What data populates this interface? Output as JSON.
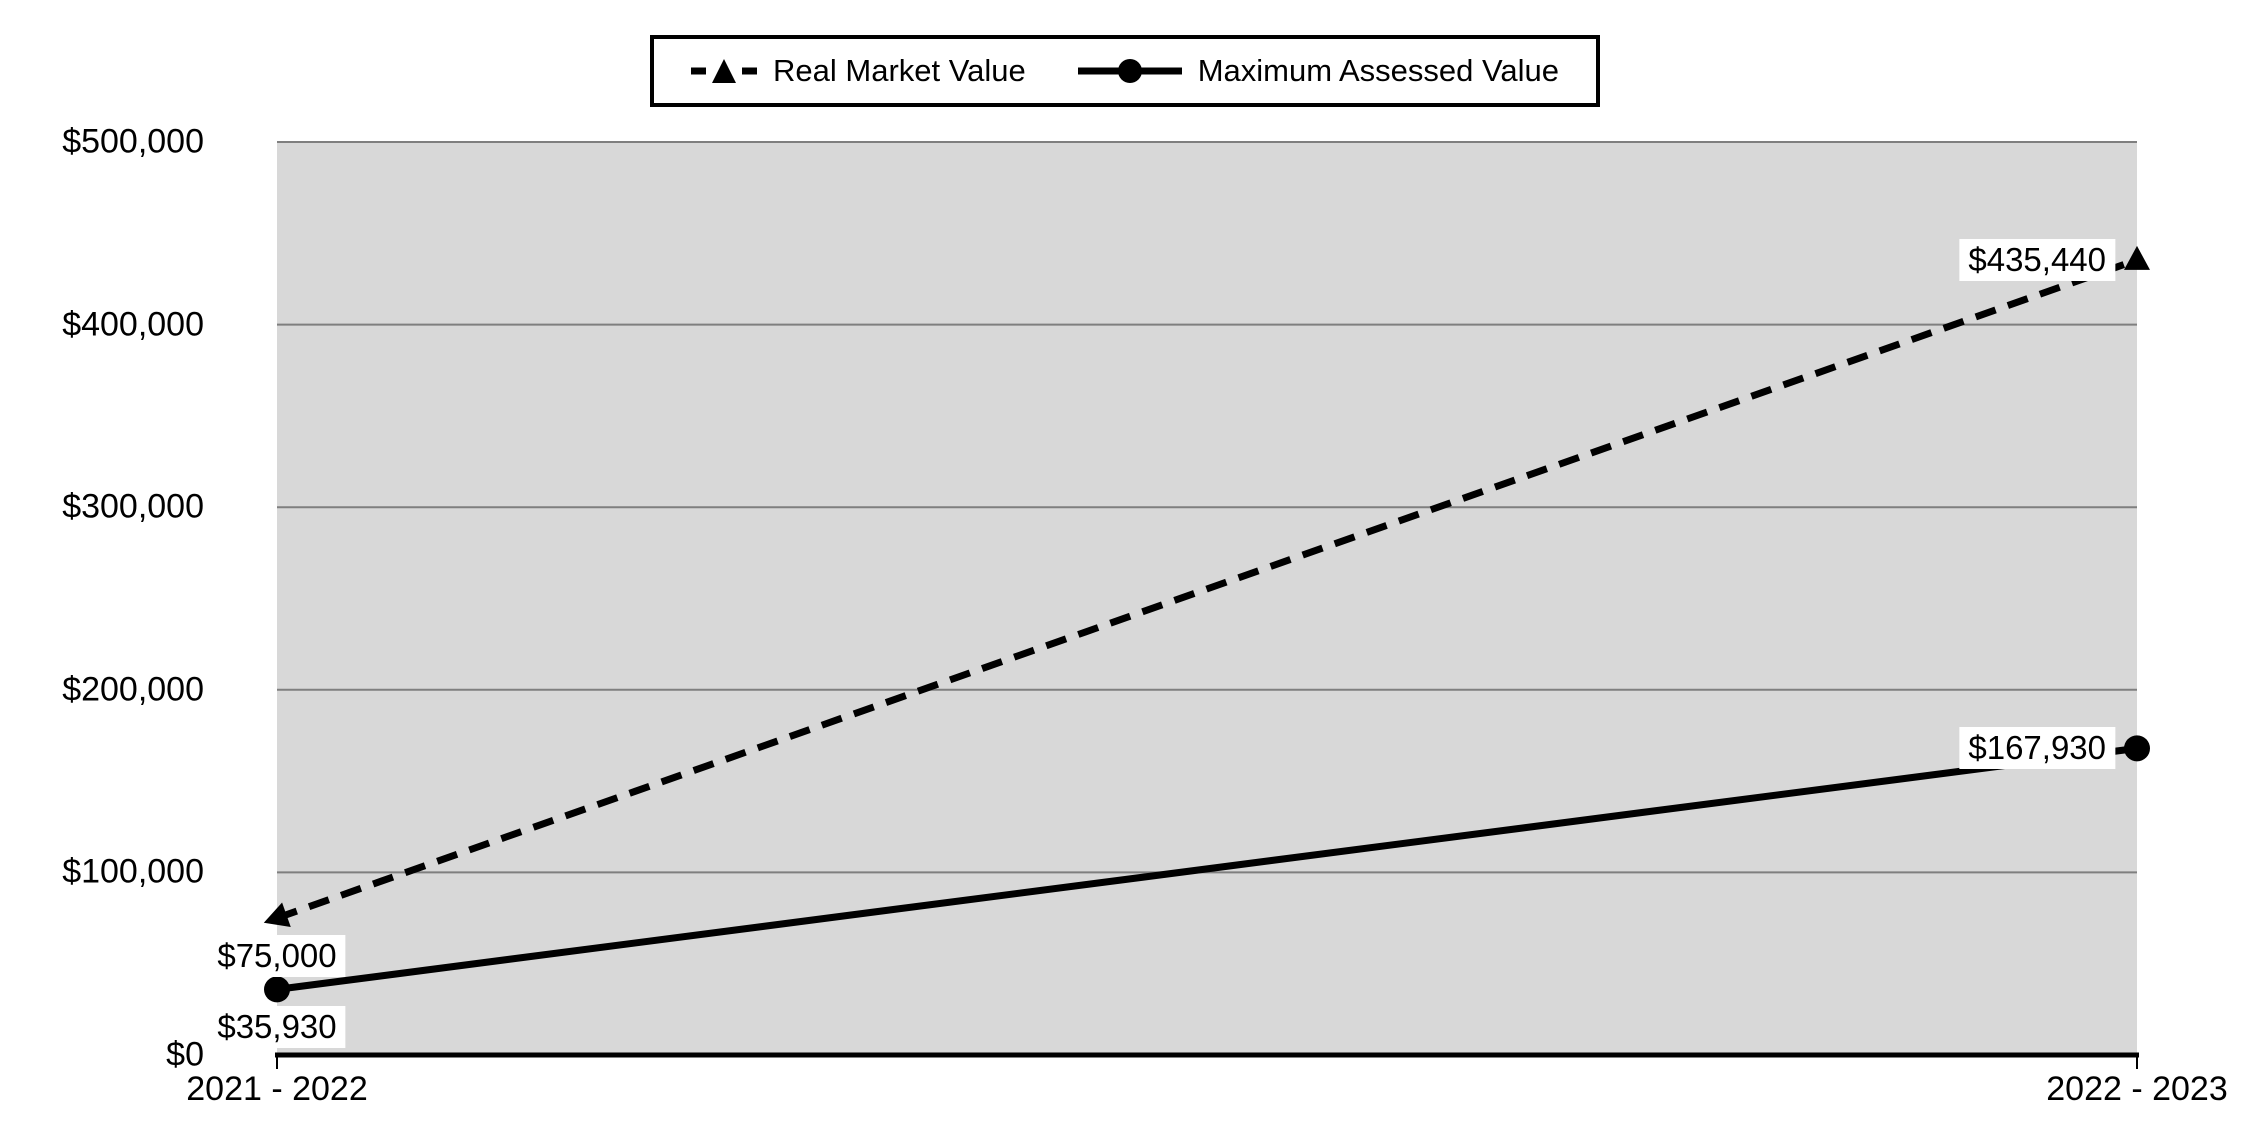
{
  "chart_data": {
    "type": "line",
    "categories": [
      "2021 - 2022",
      "2022 - 2023"
    ],
    "series": [
      {
        "name": "Real Market Value",
        "values": [
          75000,
          435440
        ],
        "point_labels": [
          "$75,000",
          "$435,440"
        ],
        "line_style": "dashed",
        "marker": "triangle",
        "color": "#000000"
      },
      {
        "name": "Maximum Assessed Value",
        "values": [
          35930,
          167930
        ],
        "point_labels": [
          "$35,930",
          "$167,930"
        ],
        "line_style": "solid",
        "marker": "circle",
        "color": "#000000"
      }
    ],
    "y_axis": {
      "min": 0,
      "max": 500000,
      "tick_interval": 100000,
      "tick_labels_bottom_to_top": [
        "$0",
        "$100,000",
        "$200,000",
        "$300,000",
        "$400,000",
        "$500,000"
      ]
    },
    "legend_position": "top",
    "grid": true,
    "colors": {
      "plot_background": "#d8d8d8",
      "gridline": "#7f7f7f",
      "axis_line": "#000000",
      "series_line": "#000000",
      "label_background": "#ffffff",
      "text": "#000000"
    }
  }
}
